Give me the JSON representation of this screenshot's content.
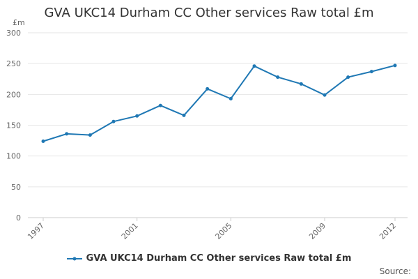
{
  "chart_data": {
    "type": "line",
    "title": "GVA UKC14 Durham CC Other services Raw total £m",
    "ylabel": "£m",
    "xlabel": "",
    "x": [
      1997,
      1998,
      1999,
      2000,
      2001,
      2002,
      2003,
      2004,
      2005,
      2006,
      2007,
      2008,
      2009,
      2010,
      2011,
      2012
    ],
    "x_tick_labels": [
      "1997",
      "2001",
      "2005",
      "2009",
      "2012"
    ],
    "x_tick_values": [
      1997,
      2001,
      2005,
      2009,
      2012
    ],
    "y_ticks": [
      0,
      50,
      100,
      150,
      200,
      250,
      300
    ],
    "ylim": [
      0,
      300
    ],
    "xlim": [
      1997,
      2012
    ],
    "grid": true,
    "legend_position": "bottom",
    "series": [
      {
        "name": "GVA UKC14 Durham CC Other services Raw total £m",
        "color": "#1f78b4",
        "values": [
          124,
          136,
          134,
          156,
          165,
          182,
          166,
          209,
          193,
          246,
          228,
          217,
          199,
          228,
          237,
          247
        ]
      }
    ]
  },
  "footer": {
    "source_label": "Source:"
  }
}
